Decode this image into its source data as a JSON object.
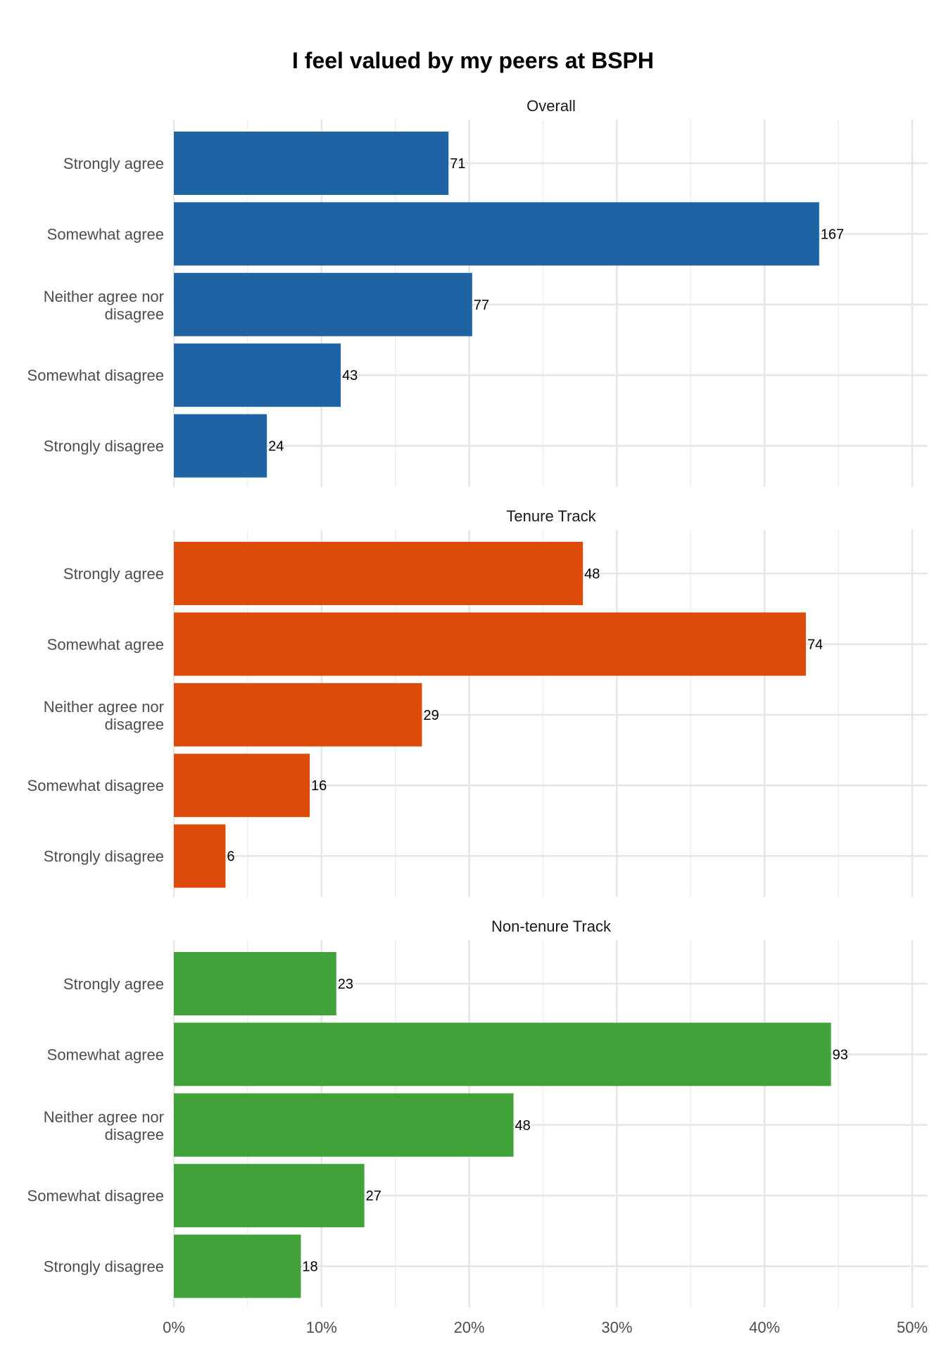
{
  "chart_data": {
    "type": "bar",
    "title": "I feel valued by my peers at BSPH",
    "xlabel": "",
    "ylabel": "",
    "xlim": [
      0,
      0.5
    ],
    "x_ticks": [
      {
        "value": 0,
        "label": "0%"
      },
      {
        "value": 0.1,
        "label": "10%"
      },
      {
        "value": 0.2,
        "label": "20%"
      },
      {
        "value": 0.3,
        "label": "30%"
      },
      {
        "value": 0.4,
        "label": "40%"
      },
      {
        "value": 0.5,
        "label": "50%"
      }
    ],
    "categories": [
      "Strongly agree",
      "Somewhat agree",
      "Neither agree nor disagree",
      "Somewhat disagree",
      "Strongly disagree"
    ],
    "category_lines": [
      [
        "Strongly agree"
      ],
      [
        "Somewhat agree"
      ],
      [
        "Neither agree nor",
        "disagree"
      ],
      [
        "Somewhat disagree"
      ],
      [
        "Strongly disagree"
      ]
    ],
    "grid": true,
    "panels": [
      {
        "name": "Overall",
        "color": "#1f63a5",
        "counts": [
          71,
          167,
          77,
          43,
          24
        ],
        "percents": [
          0.186,
          0.437,
          0.202,
          0.113,
          0.063
        ]
      },
      {
        "name": "Tenure Track",
        "color": "#dd4b0a",
        "counts": [
          48,
          74,
          29,
          16,
          6
        ],
        "percents": [
          0.277,
          0.428,
          0.168,
          0.092,
          0.035
        ]
      },
      {
        "name": "Non-tenure Track",
        "color": "#41a23a",
        "counts": [
          23,
          93,
          48,
          27,
          18
        ],
        "percents": [
          0.11,
          0.445,
          0.23,
          0.129,
          0.086
        ]
      }
    ]
  }
}
